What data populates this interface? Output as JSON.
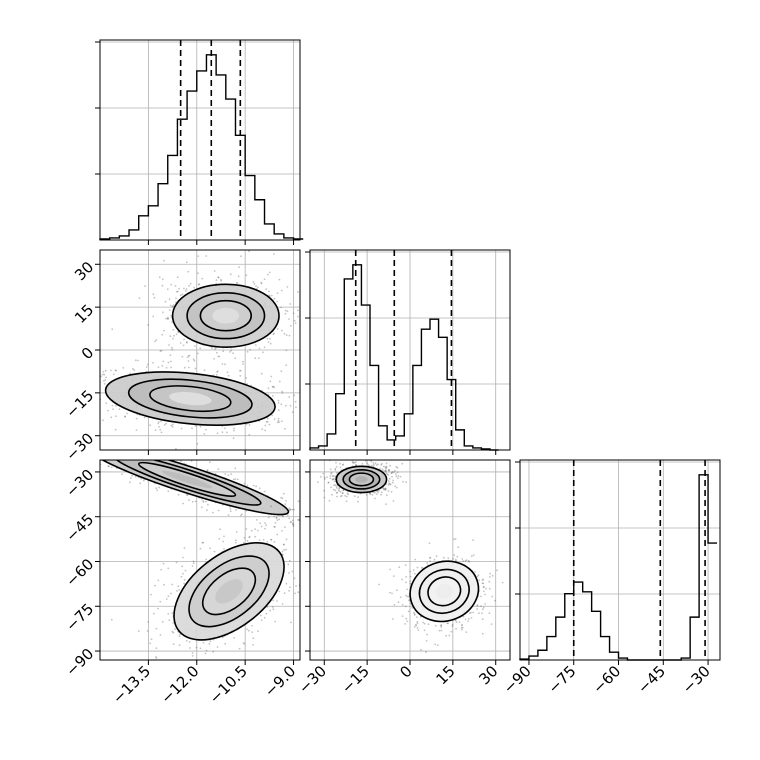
{
  "chart_data": [
    {
      "type": "histogram",
      "panel": "p00",
      "parameter_index": 0,
      "xlim": [
        -15.0,
        -8.8
      ],
      "xticks": [
        -13.5,
        -12.0,
        -10.5,
        -9.0
      ],
      "grid": true,
      "bin_edges": [
        -15.0,
        -14.7,
        -14.4,
        -14.1,
        -13.8,
        -13.5,
        -13.2,
        -12.9,
        -12.6,
        -12.3,
        -12.0,
        -11.7,
        -11.4,
        -11.1,
        -10.8,
        -10.5,
        -10.2,
        -9.9,
        -9.6,
        -9.3,
        -9.0,
        -8.7
      ],
      "counts": [
        0.5,
        1,
        2,
        5,
        12,
        17,
        28,
        42,
        60,
        74,
        84,
        92,
        82,
        70,
        52,
        32,
        20,
        8,
        3,
        1,
        0.5
      ],
      "quantiles": [
        -12.5,
        -11.55,
        -10.65
      ]
    },
    {
      "type": "histogram",
      "panel": "p11",
      "parameter_index": 1,
      "xlim": [
        -35,
        35
      ],
      "grid": true,
      "bin_edges": [
        -35,
        -32,
        -29,
        -26,
        -23,
        -20,
        -17,
        -14,
        -11,
        -8,
        -5,
        -2,
        1,
        4,
        7,
        10,
        13,
        16,
        19,
        22,
        25,
        28,
        31
      ],
      "counts": [
        1,
        2,
        8,
        28,
        85,
        92,
        72,
        42,
        12,
        5,
        7,
        18,
        42,
        60,
        65,
        56,
        35,
        10,
        2,
        1,
        0.5,
        0
      ],
      "quantiles": [
        -19,
        -5.5,
        14.5
      ]
    },
    {
      "type": "histogram",
      "panel": "p22",
      "parameter_index": 2,
      "xlim": [
        -93,
        -26
      ],
      "xticks": [
        -90,
        -75,
        -60,
        -45,
        -30
      ],
      "grid": true,
      "bin_edges": [
        -93,
        -90,
        -87,
        -84,
        -81,
        -78,
        -75,
        -72,
        -69,
        -66,
        -63,
        -60,
        -57,
        -54,
        -51,
        -48,
        -45,
        -42,
        -39,
        -36,
        -33,
        -30,
        -27
      ],
      "counts": [
        0.5,
        2,
        5,
        12,
        22,
        34,
        40,
        35,
        25,
        12,
        4,
        1,
        0,
        0,
        0,
        0,
        0,
        0,
        1,
        22,
        95,
        60
      ],
      "quantiles": [
        -75,
        -46,
        -31
      ]
    },
    {
      "type": "scatter",
      "panel": "p10",
      "x_param": 0,
      "y_param": 1,
      "xlim": [
        -15.0,
        -8.8
      ],
      "ylim": [
        -35,
        35
      ],
      "yticks": [
        -30,
        -15,
        0,
        15,
        30
      ],
      "grid": true,
      "clusters": [
        {
          "center": [
            -11.1,
            12
          ],
          "spread": [
            0.75,
            5
          ],
          "tilt": 0.0,
          "density": [
            0.9,
            0.55,
            0.3,
            0.15
          ]
        },
        {
          "center": [
            -12.2,
            -17
          ],
          "spread": [
            1.2,
            4
          ],
          "tilt": 0.15,
          "density": [
            0.95,
            0.6,
            0.35,
            0.15
          ]
        }
      ]
    },
    {
      "type": "scatter",
      "panel": "p20",
      "x_param": 0,
      "y_param": 2,
      "xlim": [
        -15.0,
        -8.8
      ],
      "ylim": [
        -93,
        -26
      ],
      "yticks": [
        -90,
        -75,
        -60,
        -45,
        -30
      ],
      "grid": true,
      "clusters": [
        {
          "center": [
            -12.3,
            -32.5
          ],
          "spread": [
            1.5,
            2
          ],
          "tilt": 0.45,
          "density": [
            0.98,
            0.6,
            0.3
          ]
        },
        {
          "center": [
            -11.0,
            -70
          ],
          "spread": [
            0.9,
            5.5
          ],
          "tilt": -0.95,
          "density": [
            0.7,
            0.45,
            0.25
          ]
        }
      ]
    },
    {
      "type": "scatter",
      "panel": "p21",
      "x_param": 1,
      "y_param": 2,
      "xlim": [
        -35,
        35
      ],
      "ylim": [
        -93,
        -26
      ],
      "xticks": [
        -30,
        -15,
        0,
        15,
        30
      ],
      "grid": true,
      "clusters": [
        {
          "center": [
            -17,
            -32.5
          ],
          "spread": [
            4,
            2
          ],
          "tilt": 0.0,
          "density": [
            0.98,
            0.7,
            0.35
          ]
        },
        {
          "center": [
            12,
            -70
          ],
          "spread": [
            5.5,
            4.5
          ],
          "tilt": -0.45,
          "density": [
            0.25,
            0.15,
            0.08
          ]
        }
      ]
    }
  ],
  "style": {
    "line_color": "#000000",
    "grid_color": "#b0b0b0",
    "point_color": "#555555"
  }
}
